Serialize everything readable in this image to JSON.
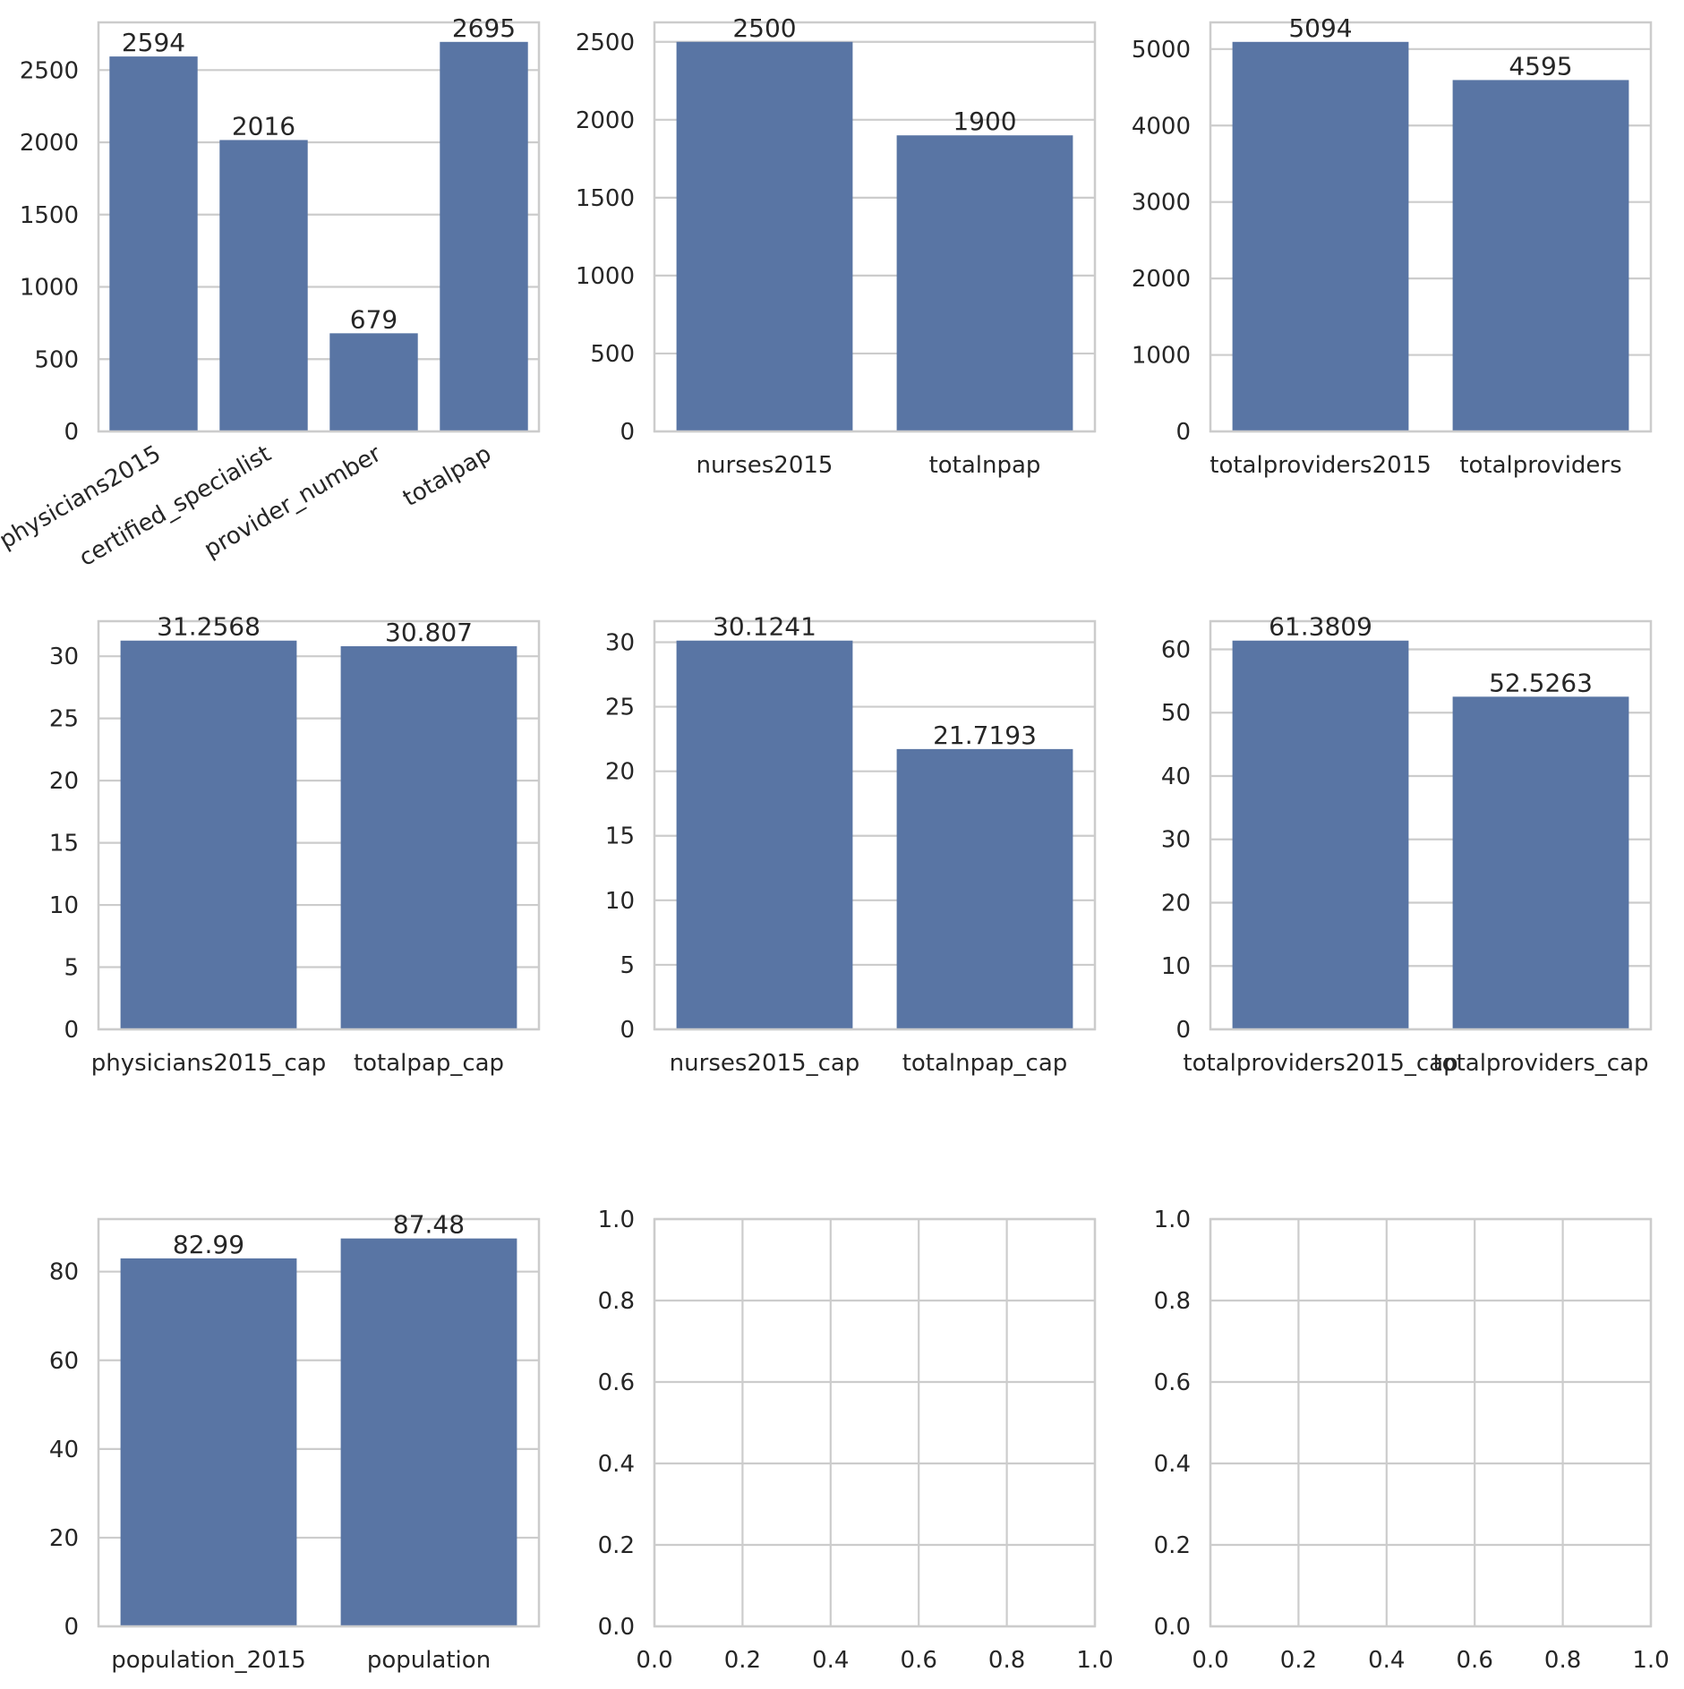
{
  "style": {
    "bar_color": "#5975a4",
    "grid_color": "#cccccc",
    "spine_color": "#cccccc",
    "text_color": "#262626",
    "background": "#ffffff"
  },
  "chart_data": [
    {
      "type": "bar",
      "categories": [
        "physicians2015",
        "certified_specialist",
        "provider_number",
        "totalpap"
      ],
      "values": [
        2594,
        2016,
        679,
        2695
      ],
      "data_labels": [
        "2594",
        "2016",
        "679",
        "2695"
      ],
      "yticks": [
        0,
        500,
        1000,
        1500,
        2000,
        2500
      ],
      "ylim": [
        0,
        2830
      ],
      "xtick_rotation": 30,
      "grid": "y"
    },
    {
      "type": "bar",
      "categories": [
        "nurses2015",
        "totalnpap"
      ],
      "values": [
        2500,
        1900
      ],
      "data_labels": [
        "2500",
        "1900"
      ],
      "yticks": [
        0,
        500,
        1000,
        1500,
        2000,
        2500
      ],
      "ylim": [
        0,
        2625
      ],
      "grid": "y"
    },
    {
      "type": "bar",
      "categories": [
        "totalproviders2015",
        "totalproviders"
      ],
      "values": [
        5094,
        4595
      ],
      "data_labels": [
        "5094",
        "4595"
      ],
      "yticks": [
        0,
        1000,
        2000,
        3000,
        4000,
        5000
      ],
      "ylim": [
        0,
        5349
      ],
      "grid": "y"
    },
    {
      "type": "bar",
      "categories": [
        "physicians2015_cap",
        "totalpap_cap"
      ],
      "values": [
        31.2568,
        30.807
      ],
      "data_labels": [
        "31.2568",
        "30.807"
      ],
      "yticks": [
        0,
        5,
        10,
        15,
        20,
        25,
        30
      ],
      "ylim": [
        0,
        32.82
      ],
      "grid": "y"
    },
    {
      "type": "bar",
      "categories": [
        "nurses2015_cap",
        "totalnpap_cap"
      ],
      "values": [
        30.1241,
        21.7193
      ],
      "data_labels": [
        "30.1241",
        "21.7193"
      ],
      "yticks": [
        0,
        5,
        10,
        15,
        20,
        25,
        30
      ],
      "ylim": [
        0,
        31.63
      ],
      "grid": "y"
    },
    {
      "type": "bar",
      "categories": [
        "totalproviders2015_cap",
        "totalproviders_cap"
      ],
      "values": [
        61.3809,
        52.5263
      ],
      "data_labels": [
        "61.3809",
        "52.5263"
      ],
      "yticks": [
        0,
        10,
        20,
        30,
        40,
        50,
        60
      ],
      "ylim": [
        0,
        64.45
      ],
      "grid": "y"
    },
    {
      "type": "bar",
      "categories": [
        "population_2015",
        "population"
      ],
      "values": [
        82.99,
        87.48
      ],
      "data_labels": [
        "82.99",
        "87.48"
      ],
      "yticks": [
        0,
        20,
        40,
        60,
        80
      ],
      "ylim": [
        0,
        91.85
      ],
      "grid": "y"
    },
    {
      "type": "empty",
      "xticks": [
        "0.0",
        "0.2",
        "0.4",
        "0.6",
        "0.8",
        "1.0"
      ],
      "yticks": [
        "0.0",
        "0.2",
        "0.4",
        "0.6",
        "0.8",
        "1.0"
      ],
      "xlim": [
        0,
        1
      ],
      "ylim": [
        0,
        1
      ],
      "grid": "both"
    },
    {
      "type": "empty",
      "xticks": [
        "0.0",
        "0.2",
        "0.4",
        "0.6",
        "0.8",
        "1.0"
      ],
      "yticks": [
        "0.0",
        "0.2",
        "0.4",
        "0.6",
        "0.8",
        "1.0"
      ],
      "xlim": [
        0,
        1
      ],
      "ylim": [
        0,
        1
      ],
      "grid": "both"
    }
  ]
}
